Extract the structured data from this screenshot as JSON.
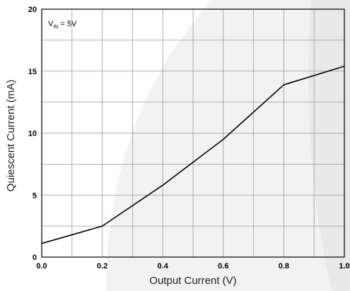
{
  "chart_data": {
    "type": "line",
    "xlabel": "Output Current (V)",
    "ylabel": "Quiescent Current (mA)",
    "xlim": [
      0.0,
      1.0
    ],
    "ylim": [
      0,
      20
    ],
    "x_ticks": [
      "0.0",
      "0.2",
      "0.4",
      "0.6",
      "0.8",
      "1.0"
    ],
    "y_ticks": [
      "0",
      "5",
      "10",
      "15",
      "20"
    ],
    "x_tick_values": [
      0.0,
      0.2,
      0.4,
      0.6,
      0.8,
      1.0
    ],
    "y_tick_values": [
      0,
      5,
      10,
      15,
      20
    ],
    "x_grid_minor_step": 0.1,
    "y_grid_minor_step": 2.5,
    "grid": true,
    "annotation": {
      "main": "V",
      "subscript": "IN",
      "rest": " = 5V"
    },
    "series": [
      {
        "x": [
          0.0,
          0.2,
          0.4,
          0.6,
          0.8,
          1.0
        ],
        "y": [
          1.1,
          2.5,
          5.8,
          9.5,
          13.9,
          15.4
        ],
        "color": "#000000"
      }
    ]
  }
}
